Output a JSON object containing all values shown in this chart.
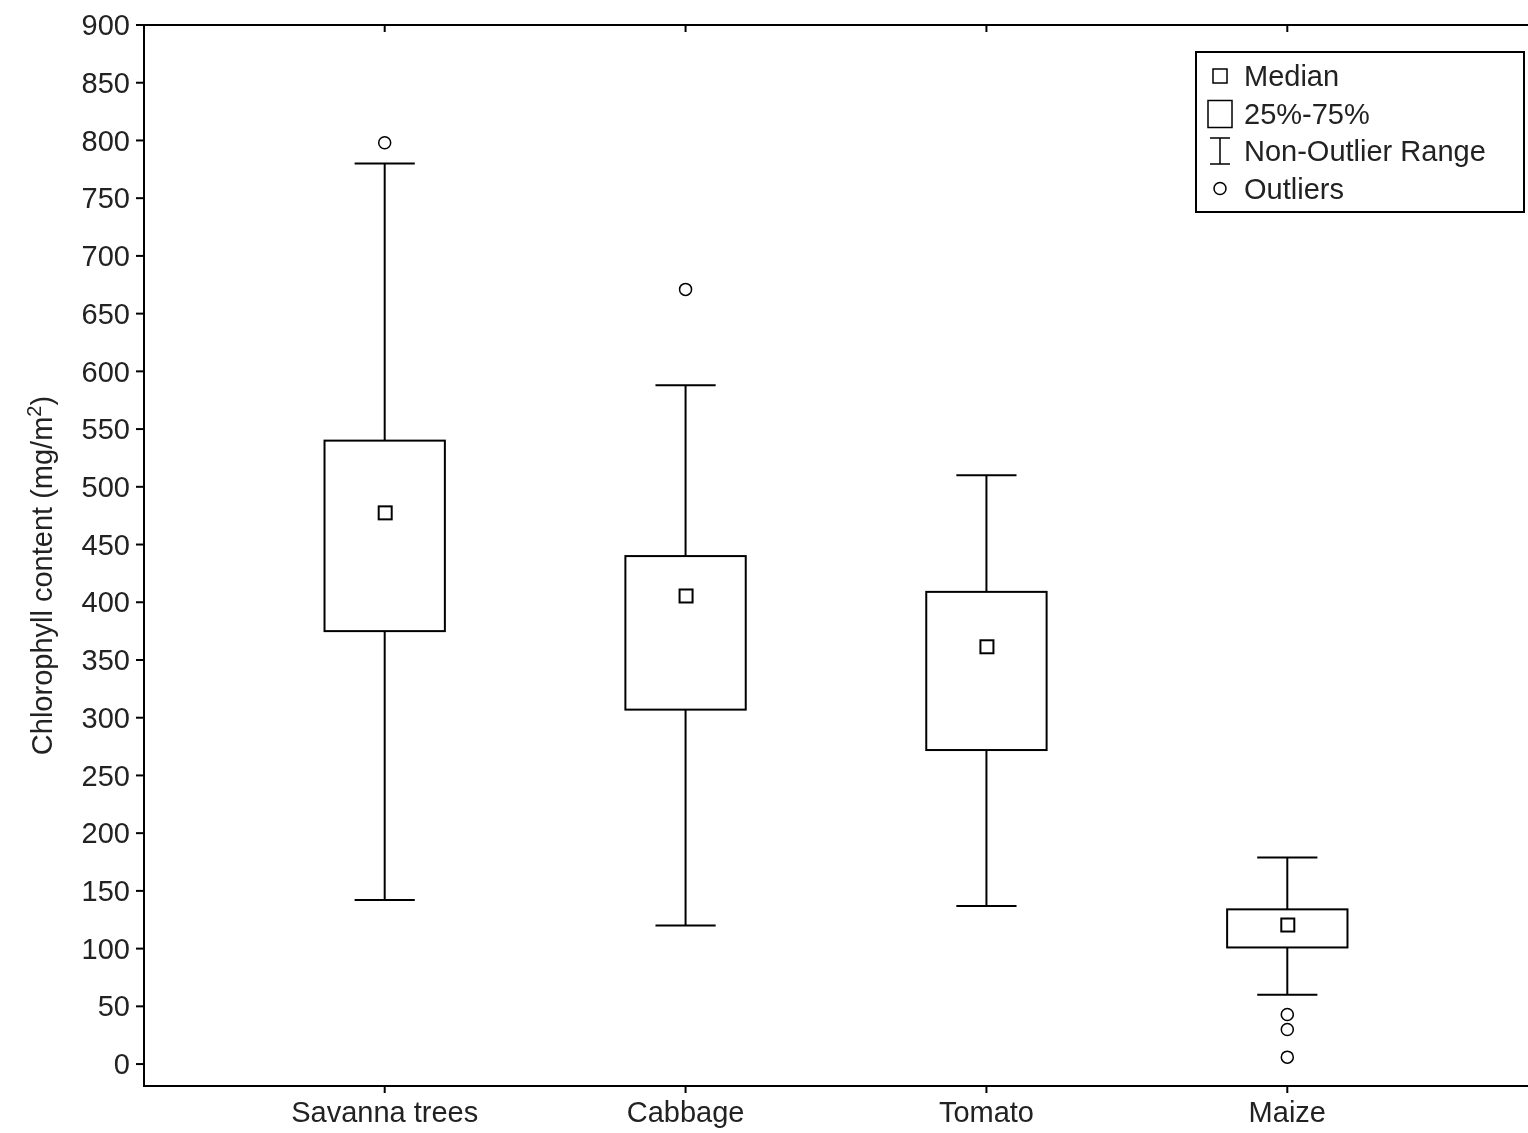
{
  "chart_data": {
    "type": "box",
    "ylabel": "Chlorophyll content (mg/m$^{2}$)",
    "categories": [
      "Savanna trees",
      "Cabbage",
      "Tomato",
      "Maize"
    ],
    "boxes": [
      {
        "low": 142,
        "q1": 375,
        "median": 477,
        "q3": 540,
        "high": 780,
        "outliers": [
          798
        ]
      },
      {
        "low": 120,
        "q1": 307,
        "median": 405,
        "q3": 440,
        "high": 588,
        "outliers": [
          671
        ]
      },
      {
        "low": 137,
        "q1": 272,
        "median": 361,
        "q3": 409,
        "high": 510
      },
      {
        "low": 60,
        "q1": 101,
        "median": 120,
        "q3": 134,
        "high": 179,
        "outliers": [
          43,
          30,
          6
        ]
      }
    ],
    "color": "#000000",
    "marker": "square",
    "ylim": [
      -19,
      900
    ],
    "yticks": [
      0,
      50,
      100,
      150,
      200,
      250,
      300,
      350,
      400,
      450,
      500,
      550,
      600,
      650,
      700,
      750,
      800,
      850,
      900
    ],
    "grid": false,
    "annotations": [
      "Median",
      "25%-75%",
      "Non-Outlier Range",
      "Outliers"
    ]
  }
}
